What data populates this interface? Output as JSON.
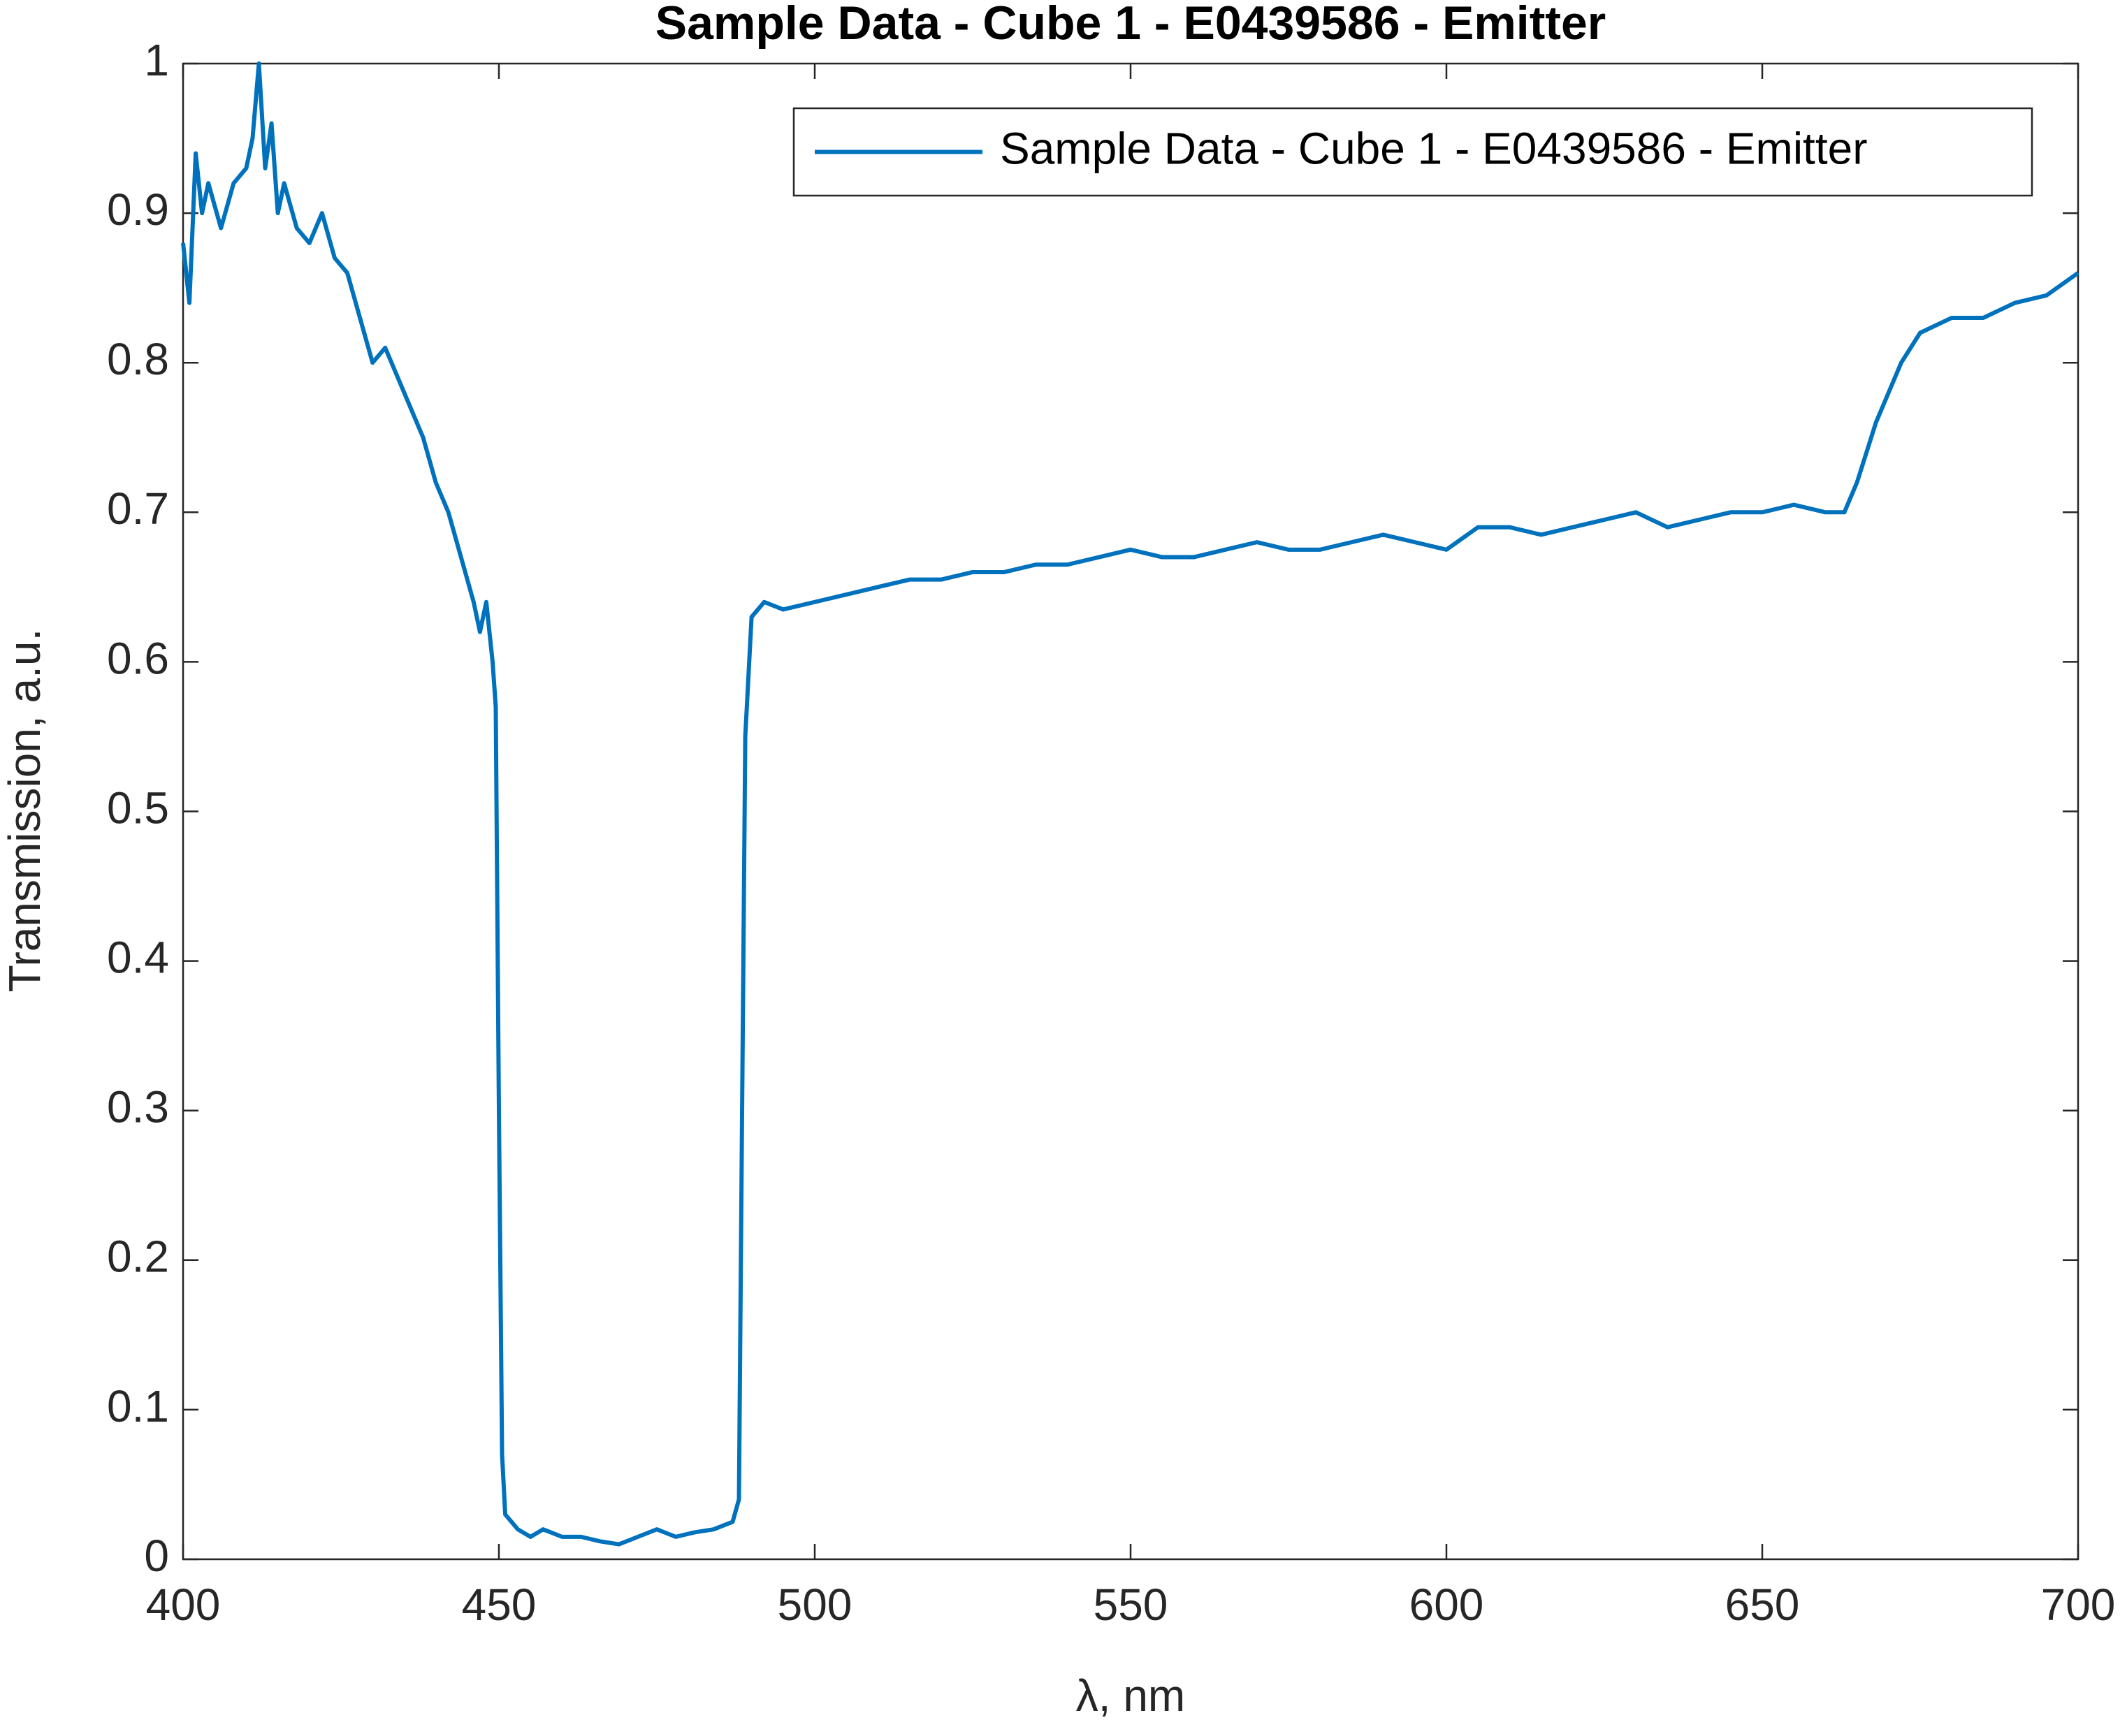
{
  "chart_data": {
    "type": "line",
    "title": "Sample Data - Cube 1 - E0439586 - Emitter",
    "x_label": "λ, nm",
    "y_label": "Transmission, a.u.",
    "xlim": [
      400,
      700
    ],
    "ylim": [
      0,
      1
    ],
    "xticks": [
      400,
      450,
      500,
      550,
      600,
      650,
      700
    ],
    "yticks": [
      0,
      0.1,
      0.2,
      0.3,
      0.4,
      0.5,
      0.6,
      0.7,
      0.8,
      0.9,
      1
    ],
    "grid": false,
    "legend": "northeast",
    "x": [
      400,
      401,
      402,
      403,
      404,
      406,
      408,
      410,
      411,
      412,
      413,
      414,
      415,
      416,
      418,
      420,
      422,
      424,
      426,
      428,
      430,
      432,
      434,
      436,
      438,
      440,
      442,
      444,
      446,
      447,
      448,
      449,
      449.5,
      450,
      450.5,
      451,
      453,
      455,
      457,
      460,
      463,
      466,
      469,
      472,
      475,
      478,
      481,
      484,
      487,
      488,
      488.5,
      489,
      490,
      492,
      495,
      500,
      505,
      510,
      515,
      520,
      525,
      530,
      535,
      540,
      545,
      550,
      555,
      560,
      565,
      570,
      575,
      580,
      585,
      590,
      595,
      600,
      605,
      610,
      615,
      620,
      625,
      630,
      635,
      640,
      645,
      650,
      655,
      660,
      663,
      665,
      668,
      670,
      672,
      675,
      680,
      685,
      690,
      695,
      700
    ],
    "series": [
      {
        "name": "Sample Data - Cube 1 - E0439586 - Emitter",
        "color": "#0072bd",
        "values": [
          0.88,
          0.84,
          0.94,
          0.9,
          0.92,
          0.89,
          0.92,
          0.93,
          0.95,
          1.0,
          0.93,
          0.96,
          0.9,
          0.92,
          0.89,
          0.88,
          0.9,
          0.87,
          0.86,
          0.83,
          0.8,
          0.81,
          0.79,
          0.77,
          0.75,
          0.72,
          0.7,
          0.67,
          0.64,
          0.62,
          0.64,
          0.6,
          0.57,
          0.3,
          0.07,
          0.03,
          0.02,
          0.015,
          0.02,
          0.015,
          0.015,
          0.012,
          0.01,
          0.015,
          0.02,
          0.015,
          0.018,
          0.02,
          0.025,
          0.04,
          0.3,
          0.55,
          0.63,
          0.64,
          0.635,
          0.64,
          0.645,
          0.65,
          0.655,
          0.655,
          0.66,
          0.66,
          0.665,
          0.665,
          0.67,
          0.675,
          0.67,
          0.67,
          0.675,
          0.68,
          0.675,
          0.675,
          0.68,
          0.685,
          0.68,
          0.675,
          0.69,
          0.69,
          0.685,
          0.69,
          0.695,
          0.7,
          0.69,
          0.695,
          0.7,
          0.7,
          0.705,
          0.7,
          0.7,
          0.72,
          0.76,
          0.78,
          0.8,
          0.82,
          0.83,
          0.83,
          0.84,
          0.845,
          0.86
        ]
      }
    ]
  }
}
